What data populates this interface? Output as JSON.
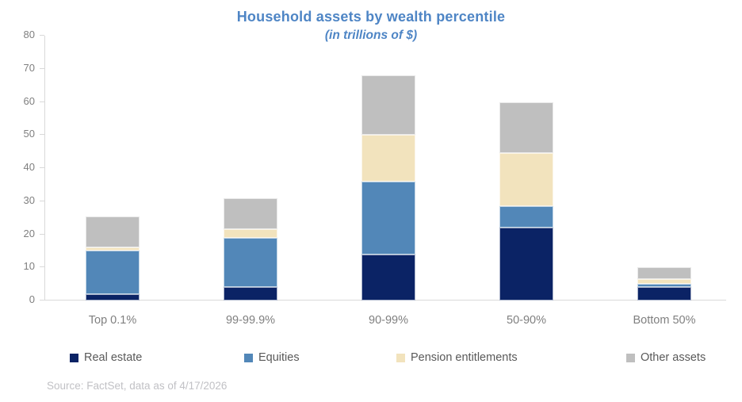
{
  "title": "Household assets by wealth percentile",
  "subtitle": "(in trillions of $)",
  "source": "Source: FactSet, data as of 4/17/2026",
  "colors": {
    "title_blue": "#4e85c5",
    "real_estate": "#0b2365",
    "equities": "#5287b8",
    "pension_entitlements": "#f2e3bd",
    "other_assets": "#bfbfbf",
    "axis_line": "#d9d9d9",
    "tick_text": "#7f7f7f",
    "legend_text": "#595959",
    "source_text": "#c1c1c5"
  },
  "chart_data": {
    "type": "bar",
    "stacked": true,
    "title": "Household assets by wealth percentile",
    "subtitle": "(in trillions of $)",
    "xlabel": "",
    "ylabel": "trillions of $",
    "ylim": [
      0,
      80
    ],
    "ytick_step": 10,
    "yticks": [
      0,
      10,
      20,
      30,
      40,
      50,
      60,
      70,
      80
    ],
    "grid": false,
    "legend_position": "bottom",
    "categories": [
      "Top 0.1%",
      "99-99.9%",
      "90-99%",
      "50-90%",
      "Bottom 50%"
    ],
    "series": [
      {
        "name": "Real estate",
        "color": "#0b2365",
        "values": [
          2,
          4,
          14,
          22,
          4
        ]
      },
      {
        "name": "Equities",
        "color": "#5287b8",
        "values": [
          13,
          15,
          22,
          6.5,
          1
        ]
      },
      {
        "name": "Pension entitlements",
        "color": "#f2e3bd",
        "values": [
          1,
          2.5,
          14,
          16,
          1.5
        ]
      },
      {
        "name": "Other assets",
        "color": "#bfbfbf",
        "values": [
          9.5,
          9.5,
          18,
          15.5,
          3.5
        ]
      }
    ],
    "totals": [
      25.5,
      31,
      68,
      60,
      10
    ]
  }
}
